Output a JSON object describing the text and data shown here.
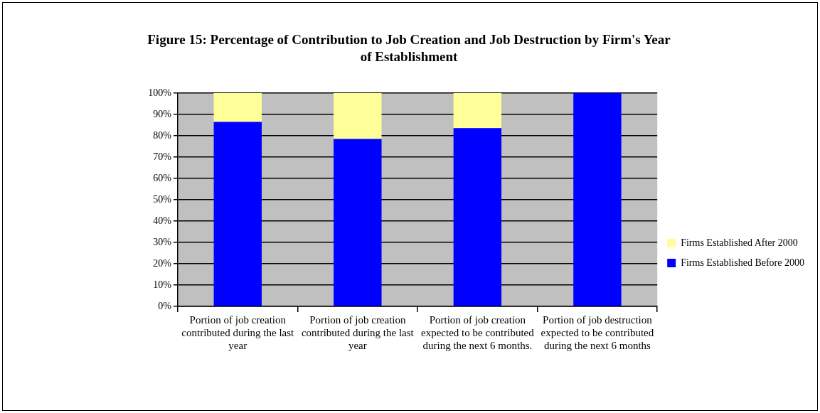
{
  "chart_data": {
    "type": "bar",
    "stacked": true,
    "title": "Figure 15: Percentage of Contribution to  Job Creation and Job Destruction by Firm's Year of Establishment",
    "categories": [
      "Portion of job creation contributed during the last year",
      "Portion of job creation contributed during the last year",
      "Portion of job creation expected to be contributed during the next 6 months.",
      "Portion of job destruction expected to be contributed during the next 6 months"
    ],
    "series": [
      {
        "name": "Firms Established Before 2000",
        "color": "#0000ff",
        "values": [
          86.5,
          78.5,
          83.6,
          100
        ]
      },
      {
        "name": "Firms Established After 2000",
        "color": "#ffff99",
        "values": [
          13.5,
          21.5,
          16.4,
          0
        ]
      }
    ],
    "ylim": [
      0,
      100
    ],
    "yticks": [
      {
        "value": 0,
        "label": "0%"
      },
      {
        "value": 10,
        "label": "10%"
      },
      {
        "value": 20,
        "label": "20%"
      },
      {
        "value": 30,
        "label": "30%"
      },
      {
        "value": 40,
        "label": "40%"
      },
      {
        "value": 50,
        "label": "50%"
      },
      {
        "value": 60,
        "label": "60%"
      },
      {
        "value": 70,
        "label": "70%"
      },
      {
        "value": 80,
        "label": "80%"
      },
      {
        "value": 90,
        "label": "90%"
      },
      {
        "value": 100,
        "label": "100%"
      }
    ],
    "grid": "y",
    "legend": "right"
  }
}
